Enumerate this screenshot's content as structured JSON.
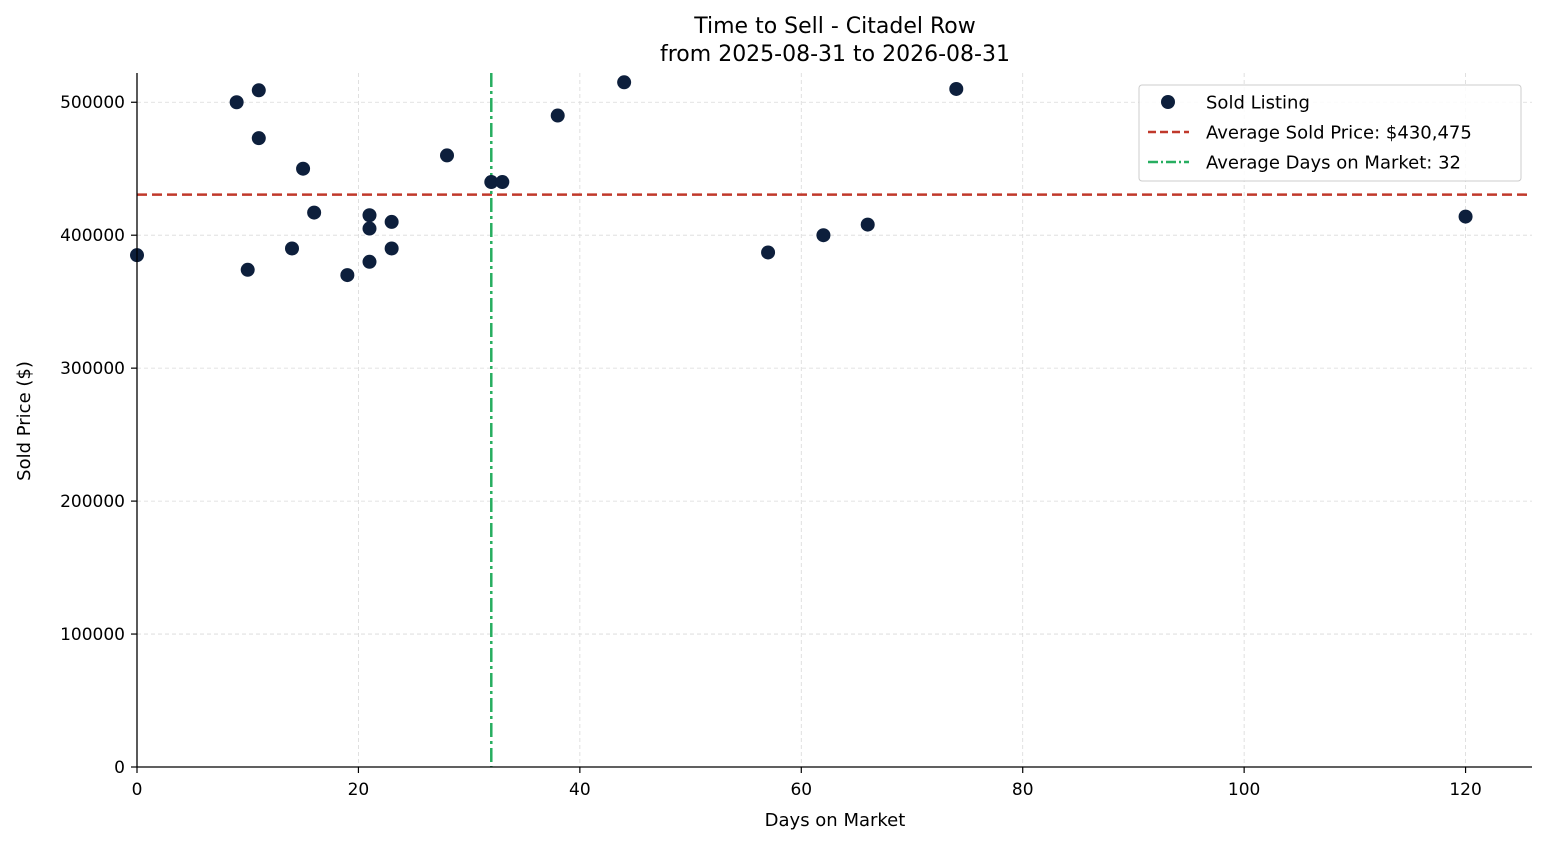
{
  "chart_data": {
    "type": "scatter",
    "title": "Time to Sell - Citadel Row",
    "subtitle": "from 2025-08-31 to 2026-08-31",
    "xlabel": "Days on Market",
    "ylabel": "Sold Price ($)",
    "xlim": [
      0,
      126
    ],
    "ylim": [
      0,
      522000
    ],
    "x_ticks": [
      0,
      20,
      40,
      60,
      80,
      100,
      120
    ],
    "y_ticks": [
      0,
      100000,
      200000,
      300000,
      400000,
      500000
    ],
    "x_tick_labels": [
      "0",
      "20",
      "40",
      "60",
      "80",
      "100",
      "120"
    ],
    "y_tick_labels": [
      "0",
      "100000",
      "200000",
      "300000",
      "400000",
      "500000"
    ],
    "grid": true,
    "legend_position": "top-right",
    "series": [
      {
        "name": "Sold Listing",
        "color": "#0d1f3c",
        "points": [
          {
            "x": 0,
            "y": 385000
          },
          {
            "x": 9,
            "y": 500000
          },
          {
            "x": 10,
            "y": 374000
          },
          {
            "x": 11,
            "y": 509000
          },
          {
            "x": 11,
            "y": 473000
          },
          {
            "x": 14,
            "y": 390000
          },
          {
            "x": 15,
            "y": 450000
          },
          {
            "x": 16,
            "y": 417000
          },
          {
            "x": 19,
            "y": 370000
          },
          {
            "x": 21,
            "y": 415000
          },
          {
            "x": 21,
            "y": 405000
          },
          {
            "x": 21,
            "y": 380000
          },
          {
            "x": 23,
            "y": 410000
          },
          {
            "x": 23,
            "y": 390000
          },
          {
            "x": 28,
            "y": 460000
          },
          {
            "x": 32,
            "y": 440000
          },
          {
            "x": 33,
            "y": 440000
          },
          {
            "x": 38,
            "y": 490000
          },
          {
            "x": 44,
            "y": 515000
          },
          {
            "x": 57,
            "y": 387000
          },
          {
            "x": 62,
            "y": 400000
          },
          {
            "x": 66,
            "y": 408000
          },
          {
            "x": 74,
            "y": 510000
          },
          {
            "x": 120,
            "y": 414000
          }
        ]
      }
    ],
    "reference_lines": [
      {
        "name": "Average Sold Price: $430,475",
        "orientation": "horizontal",
        "value": 430475,
        "color": "#c0392b",
        "style": "dashed"
      },
      {
        "name": "Average Days on Market: 32",
        "orientation": "vertical",
        "value": 32,
        "color": "#27ae60",
        "style": "dashdot"
      }
    ]
  }
}
